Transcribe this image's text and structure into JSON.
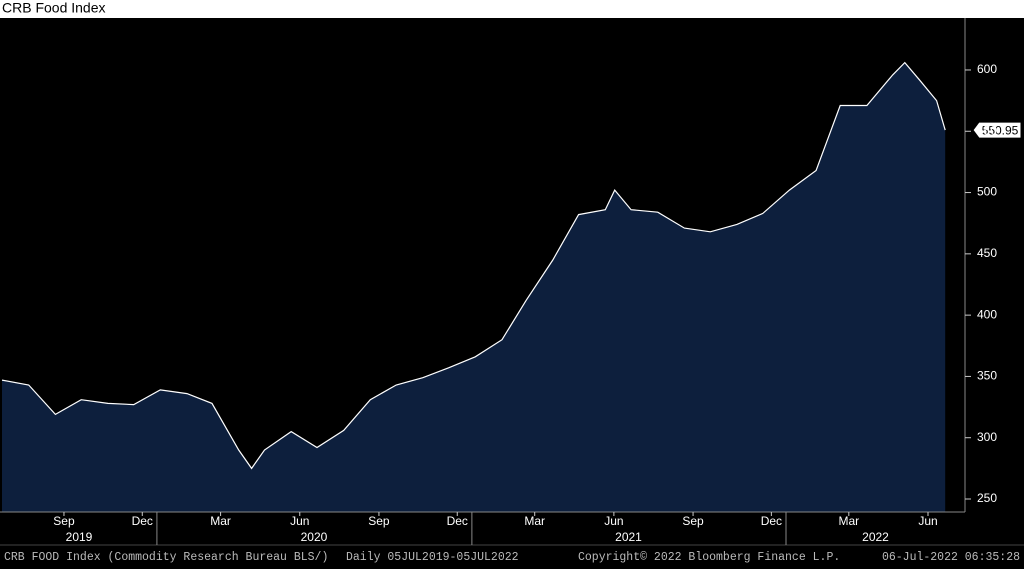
{
  "chart_data": {
    "type": "area",
    "title": "CRB Food Index",
    "x": [
      "2019-07-05",
      "2019-08-05",
      "2019-09-05",
      "2019-10-05",
      "2019-11-05",
      "2019-12-05",
      "2020-01-05",
      "2020-02-05",
      "2020-03-05",
      "2020-04-05",
      "2020-04-20",
      "2020-05-05",
      "2020-06-05",
      "2020-07-05",
      "2020-08-05",
      "2020-09-05",
      "2020-10-05",
      "2020-11-05",
      "2020-12-05",
      "2021-01-05",
      "2021-02-05",
      "2021-03-05",
      "2021-04-05",
      "2021-05-05",
      "2021-06-05",
      "2021-06-16",
      "2021-07-05",
      "2021-08-05",
      "2021-09-05",
      "2021-10-05",
      "2021-11-05",
      "2021-12-05",
      "2022-01-05",
      "2022-02-05",
      "2022-03-05",
      "2022-04-05",
      "2022-05-05",
      "2022-05-19",
      "2022-06-05",
      "2022-06-25",
      "2022-07-05"
    ],
    "values": [
      347,
      343,
      319,
      331,
      328,
      327,
      339,
      336,
      328,
      290,
      275,
      290,
      305,
      292,
      306,
      331,
      343,
      349,
      357,
      366,
      380,
      412,
      445,
      482,
      486,
      502,
      486,
      484,
      471,
      468,
      474,
      483,
      502,
      518,
      571,
      571,
      596,
      606,
      592,
      575,
      550.95
    ],
    "color": "#ffffff",
    "fill_color": "#0d1f3d",
    "xlim": [
      "2019-07-05",
      "2022-07-28"
    ],
    "xticks": [
      {
        "value": "2019-09-15",
        "label": "Sep"
      },
      {
        "value": "2019-12-15",
        "label": "Dec"
      },
      {
        "value": "2020-03-15",
        "label": "Mar"
      },
      {
        "value": "2020-06-15",
        "label": "Jun"
      },
      {
        "value": "2020-09-15",
        "label": "Sep"
      },
      {
        "value": "2020-12-15",
        "label": "Dec"
      },
      {
        "value": "2021-03-15",
        "label": "Mar"
      },
      {
        "value": "2021-06-15",
        "label": "Jun"
      },
      {
        "value": "2021-09-15",
        "label": "Sep"
      },
      {
        "value": "2021-12-15",
        "label": "Dec"
      },
      {
        "value": "2022-03-15",
        "label": "Mar"
      },
      {
        "value": "2022-06-15",
        "label": "Jun"
      }
    ],
    "years": [
      "2019",
      "2020",
      "2021",
      "2022"
    ],
    "ylim": [
      239.4,
      642.4
    ],
    "yticks": [
      250,
      300,
      350,
      400,
      450,
      500,
      550,
      600
    ],
    "source": "CRB FOOD Index (Commodity Research Bureau BLS/)",
    "range": "Daily 05JUL2019-05JUL2022",
    "copyright": "Copyright© 2022 Bloomberg Finance L.P.",
    "timestamp": "06-Jul-2022 06:35:28"
  }
}
